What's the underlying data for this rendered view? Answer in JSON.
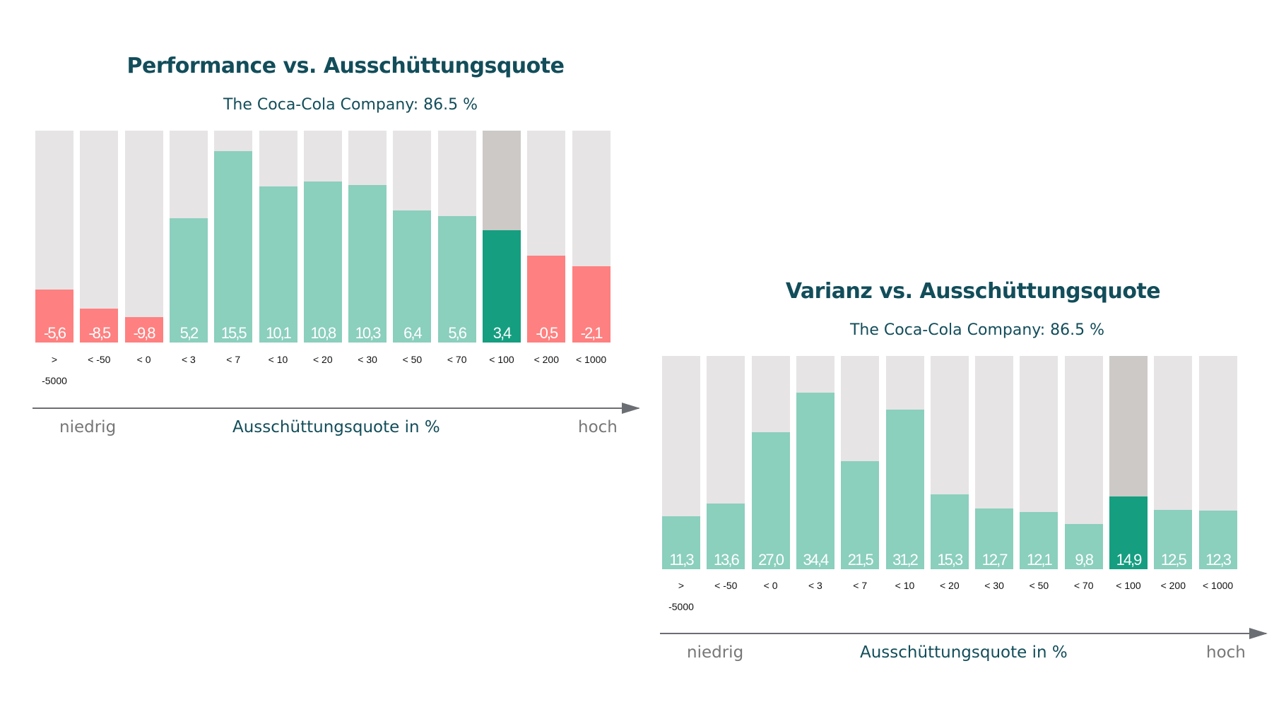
{
  "colors": {
    "negative": "#ff8080",
    "positive": "#8bcfbd",
    "highlight": "#159e80",
    "background": "#e6e4e5",
    "highlight_background": "#ccc9c7"
  },
  "chart_data": [
    {
      "type": "bar",
      "title": "Performance vs. Ausschüttungsquote",
      "subtitle": "The Coca-Cola Company: 86.5 %",
      "categories": [
        "> -5000",
        "< -50",
        "< 0",
        "< 3",
        "< 7",
        "< 10",
        "< 20",
        "< 30",
        "< 50",
        "< 70",
        "< 100",
        "< 200",
        "< 1000"
      ],
      "values": [
        -5.6,
        -8.5,
        -9.8,
        5.2,
        15.5,
        10.1,
        10.8,
        10.3,
        6.4,
        5.6,
        3.4,
        -0.5,
        -2.1
      ],
      "value_labels": [
        "-5,6",
        "-8,5",
        "-9,8",
        "5,2",
        "15,5",
        "10,1",
        "10,8",
        "10,3",
        "6,4",
        "5,6",
        "3,4",
        "-0,5",
        "-2,1"
      ],
      "highlight_category": "< 100",
      "ylim": [
        -13.7,
        18.6
      ],
      "xlabel": "Ausschüttungsquote in %",
      "x_low": "niedrig",
      "x_high": "hoch"
    },
    {
      "type": "bar",
      "title": "Varianz vs. Ausschüttungsquote",
      "subtitle": "The Coca-Cola Company: 86.5 %",
      "categories": [
        "> -5000",
        "< -50",
        "< 0",
        "< 3",
        "< 7",
        "< 10",
        "< 20",
        "< 30",
        "< 50",
        "< 70",
        "< 100",
        "< 200",
        "< 1000"
      ],
      "values": [
        11.3,
        13.6,
        27.0,
        34.4,
        21.5,
        31.2,
        15.3,
        12.7,
        12.1,
        9.8,
        14.9,
        12.5,
        12.3
      ],
      "value_labels": [
        "11,3",
        "13,6",
        "27,0",
        "34,4",
        "21,5",
        "31,2",
        "15,3",
        "12,7",
        "12,1",
        "9,8",
        "14,9",
        "12,5",
        "12,3"
      ],
      "highlight_category": "< 100",
      "ylim": [
        1.35,
        41.2
      ],
      "xlabel": "Ausschüttungsquote in %",
      "x_low": "niedrig",
      "x_high": "hoch"
    }
  ]
}
